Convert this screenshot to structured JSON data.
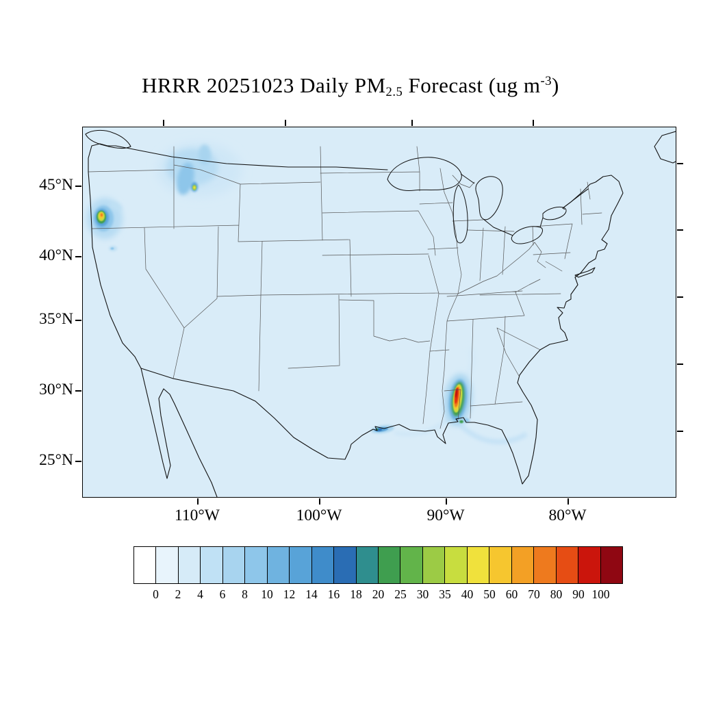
{
  "title": {
    "prefix": "HRRR 20251023 Daily PM",
    "subscript": "2.5",
    "middle": " Forecast (ug m",
    "superscript": "-3",
    "suffix": ")"
  },
  "axes": {
    "lat_labels": [
      "45°N",
      "40°N",
      "35°N",
      "30°N",
      "25°N"
    ],
    "lon_labels": [
      "110°W",
      "100°W",
      "90°W",
      "80°W"
    ]
  },
  "colorbar": {
    "tick_labels": [
      "0",
      "2",
      "4",
      "6",
      "8",
      "10",
      "12",
      "14",
      "16",
      "18",
      "20",
      "25",
      "30",
      "35",
      "40",
      "50",
      "60",
      "70",
      "80",
      "90",
      "100"
    ],
    "colors": [
      "#ffffff",
      "#e8f4fc",
      "#d6ebf8",
      "#c0e1f5",
      "#a8d4ef",
      "#8ec6ea",
      "#6fb3e0",
      "#58a3d8",
      "#3f8cca",
      "#2a6db4",
      "#2f8e8e",
      "#3f9e4f",
      "#62b44a",
      "#9ccb45",
      "#c8dd3f",
      "#f0e13c",
      "#f6c62f",
      "#f3a025",
      "#ee7a1e",
      "#e64d14",
      "#cb150c",
      "#8f0712"
    ]
  },
  "chart_data": {
    "type": "heatmap",
    "title": "HRRR 20251023 Daily PM2.5 Forecast (ug m-3)",
    "model": "HRRR",
    "forecast_date": "20251023",
    "variable": "Daily PM2.5",
    "units": "ug m-3",
    "domain": "Continental United States (CONUS)",
    "lat_ticks_deg_n": [
      45,
      40,
      35,
      30,
      25
    ],
    "lon_ticks_deg_w": [
      110,
      100,
      90,
      80
    ],
    "colorbar_levels": [
      0,
      2,
      4,
      6,
      8,
      10,
      12,
      14,
      16,
      18,
      20,
      25,
      30,
      35,
      40,
      50,
      60,
      70,
      80,
      90,
      100
    ],
    "background_value_range": [
      0,
      2
    ],
    "features": [
      {
        "name": "southwest-oregon-plume",
        "approx_location": "southern Oregon coast, ~42.5N 124W",
        "peak_value_range": "25-50"
      },
      {
        "name": "idaho-montana-smoke",
        "approx_location": "eastern Washington / Idaho panhandle / western Montana, ~45-48N",
        "peak_value_range": "4-25"
      },
      {
        "name": "gulf-coast-plume",
        "approx_location": "Alabama / Mississippi coast near Mobile Bay, ~29-31N 88W",
        "peak_value_range": "60-100"
      },
      {
        "name": "texas-coast-streak",
        "approx_location": "upper Texas coast near Galveston, ~29N 94.5W",
        "peak_value_range": "10-20"
      }
    ]
  }
}
